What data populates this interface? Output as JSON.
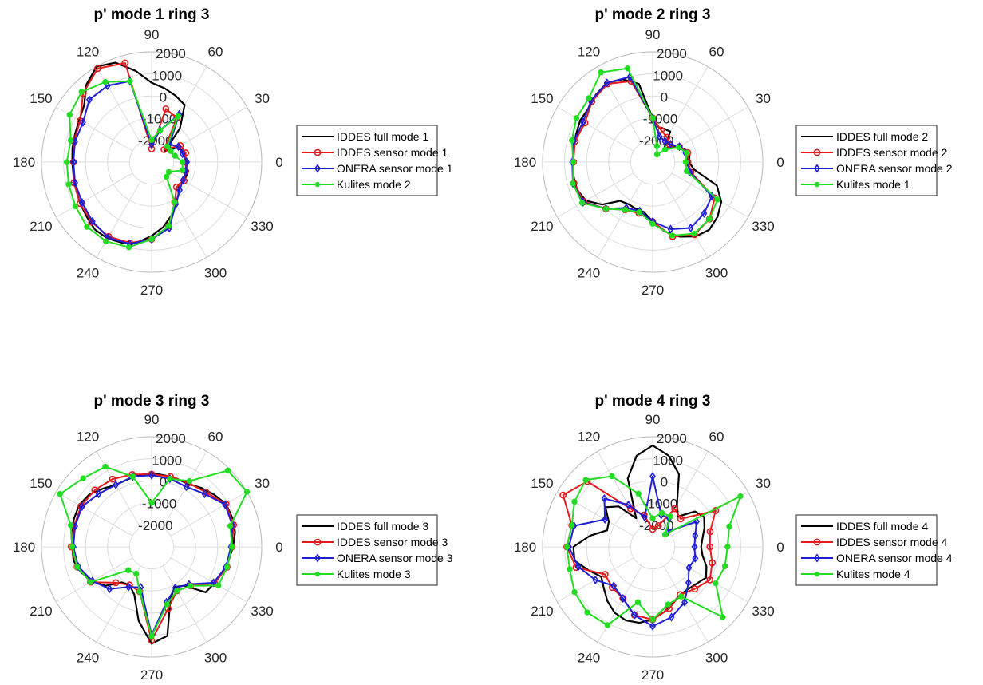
{
  "chart_data": [
    {
      "type": "polar",
      "title": "p' mode 1 ring 3",
      "theta_ticks": [
        0,
        30,
        60,
        90,
        120,
        150,
        180,
        210,
        240,
        270,
        300,
        330
      ],
      "r_ticks": [
        -2000,
        -1000,
        0,
        1000,
        2000
      ],
      "rlim": [
        -3000,
        2000
      ],
      "legend": "right",
      "series": [
        {
          "name": "IDDES full mode 1",
          "color": "#000000",
          "marker": "none",
          "theta": [
            0,
            10,
            20,
            30,
            40,
            50,
            60,
            70,
            80,
            90,
            100,
            110,
            120,
            130,
            140,
            150,
            160,
            170,
            180,
            190,
            200,
            210,
            220,
            230,
            240,
            250,
            260,
            270,
            280,
            290,
            300,
            310,
            320,
            330,
            340,
            350
          ],
          "r": [
            -1400,
            -1450,
            -1500,
            -1700,
            -2200,
            -1000,
            0,
            200,
            400,
            600,
            1200,
            1800,
            2000,
            1600,
            1000,
            800,
            700,
            650,
            600,
            600,
            650,
            750,
            850,
            1000,
            1000,
            900,
            700,
            350,
            0,
            -400,
            -800,
            -1100,
            -1400,
            -1300,
            -1300,
            -1400
          ]
        },
        {
          "name": "IDDES sensor mode 1",
          "color": "#e41a1c",
          "marker": "circle",
          "theta": [
            0,
            15,
            30,
            45,
            60,
            75,
            90,
            105,
            120,
            135,
            150,
            165,
            180,
            195,
            210,
            225,
            240,
            255,
            270,
            285,
            300,
            315,
            330,
            345
          ],
          "r": [
            -1450,
            -1400,
            -1500,
            -2200,
            -700,
            -500,
            -2400,
            1650,
            1900,
            1400,
            750,
            650,
            550,
            650,
            750,
            850,
            900,
            800,
            500,
            0,
            -900,
            -1400,
            -1300,
            -1400
          ]
        },
        {
          "name": "ONERA sensor mode 1",
          "color": "#1f1fd6",
          "marker": "diamond",
          "theta": [
            0,
            15,
            30,
            45,
            60,
            75,
            90,
            105,
            120,
            135,
            150,
            165,
            180,
            195,
            210,
            225,
            240,
            255,
            270,
            285,
            300,
            315,
            330,
            345
          ],
          "r": [
            -1400,
            -1550,
            -1600,
            -1850,
            -500,
            -1500,
            -2200,
            800,
            1000,
            1000,
            600,
            600,
            550,
            600,
            650,
            800,
            950,
            850,
            500,
            100,
            -800,
            -1200,
            -1350,
            -1400
          ]
        },
        {
          "name": "Kulites mode 2",
          "color": "#22dd22",
          "marker": "dot",
          "theta": [
            0,
            15,
            30,
            45,
            60,
            75,
            90,
            105,
            120,
            135,
            150,
            165,
            180,
            195,
            210,
            225,
            240,
            255,
            270,
            285,
            300,
            315,
            330,
            345
          ],
          "r": [
            -1600,
            -1900,
            -2000,
            -2000,
            -600,
            -1500,
            -2000,
            800,
            1200,
            1500,
            1300,
            800,
            850,
            900,
            1000,
            1150,
            1150,
            1000,
            500,
            0,
            -900,
            -2050,
            -2100,
            -1550
          ]
        }
      ]
    },
    {
      "type": "polar",
      "title": "p' mode 2 ring 3",
      "theta_ticks": [
        0,
        30,
        60,
        90,
        120,
        150,
        180,
        210,
        240,
        270,
        300,
        330
      ],
      "r_ticks": [
        -2000,
        -1000,
        0,
        1000,
        2000
      ],
      "rlim": [
        -3000,
        2000
      ],
      "legend": "right",
      "series": [
        {
          "name": "IDDES full mode 2",
          "color": "#000000",
          "marker": "none",
          "theta": [
            0,
            10,
            20,
            30,
            40,
            50,
            60,
            70,
            80,
            90,
            100,
            110,
            120,
            130,
            140,
            150,
            160,
            170,
            180,
            190,
            200,
            210,
            220,
            230,
            240,
            250,
            260,
            270,
            280,
            290,
            300,
            310,
            320,
            330,
            340,
            350
          ],
          "r": [
            -1350,
            -1300,
            -1400,
            -1600,
            -1900,
            -2200,
            -1400,
            -1400,
            -1400,
            -1000,
            600,
            1000,
            1150,
            1000,
            800,
            800,
            700,
            650,
            600,
            650,
            650,
            500,
            0,
            -700,
            -800,
            -750,
            -700,
            -300,
            200,
            600,
            900,
            1000,
            850,
            600,
            100,
            -1100
          ]
        },
        {
          "name": "IDDES sensor mode 2",
          "color": "#e41a1c",
          "marker": "circle",
          "theta": [
            0,
            15,
            30,
            45,
            60,
            75,
            90,
            105,
            120,
            135,
            150,
            165,
            180,
            195,
            210,
            225,
            240,
            255,
            270,
            285,
            300,
            315,
            330,
            345
          ],
          "r": [
            -1400,
            -1350,
            -1600,
            -1900,
            -1700,
            -1500,
            -1000,
            800,
            1100,
            900,
            550,
            650,
            600,
            700,
            600,
            0,
            -500,
            -600,
            -300,
            500,
            800,
            650,
            250,
            -1200
          ]
        },
        {
          "name": "ONERA sensor mode 2",
          "color": "#1f1fd6",
          "marker": "diamond",
          "theta": [
            0,
            15,
            30,
            45,
            60,
            75,
            90,
            105,
            120,
            135,
            150,
            165,
            180,
            195,
            210,
            225,
            240,
            255,
            270,
            285,
            300,
            315,
            330,
            345
          ],
          "r": [
            -1450,
            -1450,
            -1600,
            -1850,
            -1900,
            -1800,
            -1000,
            1000,
            1150,
            950,
            650,
            700,
            650,
            750,
            650,
            0,
            -600,
            -700,
            -300,
            150,
            450,
            300,
            100,
            -1250
          ]
        },
        {
          "name": "Kulites mode 1",
          "color": "#22dd22",
          "marker": "dot",
          "theta": [
            0,
            15,
            30,
            45,
            60,
            75,
            90,
            105,
            120,
            135,
            150,
            165,
            180,
            195,
            210,
            225,
            240,
            255,
            270,
            285,
            300,
            315,
            330,
            345
          ],
          "r": [
            -1500,
            -1400,
            -1650,
            -2200,
            -2600,
            -2250,
            -1000,
            1400,
            1700,
            1100,
            1000,
            800,
            600,
            750,
            700,
            0,
            -500,
            -650,
            -200,
            450,
            750,
            650,
            400,
            -1400
          ]
        }
      ]
    },
    {
      "type": "polar",
      "title": "p' mode 3 ring 3",
      "theta_ticks": [
        0,
        30,
        60,
        90,
        120,
        150,
        180,
        210,
        240,
        270,
        300,
        330
      ],
      "r_ticks": [
        -2000,
        -1000,
        0,
        1000,
        2000
      ],
      "rlim": [
        -3000,
        2000
      ],
      "legend": "right",
      "series": [
        {
          "name": "IDDES full mode 3",
          "color": "#000000",
          "marker": "none",
          "theta": [
            0,
            10,
            20,
            30,
            40,
            50,
            60,
            70,
            80,
            90,
            100,
            110,
            120,
            130,
            140,
            150,
            160,
            170,
            180,
            190,
            200,
            210,
            220,
            230,
            240,
            250,
            260,
            270,
            280,
            290,
            300,
            310,
            320,
            330,
            340,
            350
          ],
          "r": [
            700,
            850,
            900,
            900,
            700,
            500,
            300,
            300,
            300,
            350,
            300,
            250,
            250,
            450,
            700,
            800,
            750,
            700,
            600,
            600,
            400,
            100,
            -250,
            -900,
            -1000,
            -700,
            400,
            1400,
            1100,
            -500,
            -900,
            -700,
            200,
            300,
            400,
            550
          ]
        },
        {
          "name": "IDDES sensor mode 3",
          "color": "#e41a1c",
          "marker": "circle",
          "theta": [
            0,
            15,
            30,
            45,
            60,
            75,
            90,
            105,
            120,
            135,
            150,
            165,
            180,
            195,
            210,
            225,
            240,
            255,
            270,
            285,
            300,
            315,
            330,
            345
          ],
          "r": [
            650,
            850,
            900,
            500,
            350,
            300,
            300,
            400,
            550,
            650,
            700,
            650,
            650,
            500,
            200,
            -700,
            -1000,
            -900,
            1250,
            -100,
            -700,
            -500,
            300,
            550
          ]
        },
        {
          "name": "ONERA sensor mode 3",
          "color": "#1f1fd6",
          "marker": "diamond",
          "theta": [
            0,
            15,
            30,
            45,
            60,
            75,
            90,
            105,
            120,
            135,
            150,
            165,
            180,
            195,
            210,
            225,
            240,
            255,
            270,
            285,
            300,
            315,
            330,
            345
          ],
          "r": [
            600,
            800,
            850,
            400,
            150,
            200,
            250,
            300,
            250,
            400,
            650,
            600,
            550,
            450,
            100,
            -300,
            -900,
            -1100,
            1000,
            -400,
            -850,
            -600,
            250,
            500
          ]
        },
        {
          "name": "Kulites mode 3",
          "color": "#22dd22",
          "marker": "dot",
          "theta": [
            0,
            15,
            30,
            45,
            60,
            75,
            90,
            105,
            120,
            135,
            150,
            165,
            180,
            195,
            210,
            225,
            240,
            255,
            270,
            285,
            300,
            315,
            330,
            345
          ],
          "r": [
            650,
            700,
            2000,
            1900,
            450,
            200,
            -1000,
            300,
            1200,
            1400,
            1800,
            800,
            600,
            500,
            200,
            -1500,
            -1600,
            -900,
            1050,
            -300,
            -700,
            -500,
            500,
            550
          ]
        }
      ]
    },
    {
      "type": "polar",
      "title": "p' mode 4 ring 3",
      "theta_ticks": [
        0,
        30,
        60,
        90,
        120,
        150,
        180,
        210,
        240,
        270,
        300,
        330
      ],
      "r_ticks": [
        -2000,
        -1000,
        0,
        1000,
        2000
      ],
      "rlim": [
        -3000,
        2000
      ],
      "legend": "right",
      "series": [
        {
          "name": "IDDES full mode 4",
          "color": "#000000",
          "marker": "none",
          "theta": [
            0,
            10,
            20,
            30,
            40,
            50,
            60,
            70,
            80,
            90,
            100,
            110,
            120,
            130,
            140,
            150,
            160,
            170,
            180,
            190,
            200,
            210,
            220,
            230,
            240,
            250,
            260,
            270,
            280,
            290,
            300,
            310,
            320,
            330,
            340,
            350
          ],
          "r": [
            -800,
            -700,
            -500,
            -300,
            -500,
            -1200,
            -800,
            500,
            1200,
            1600,
            1200,
            300,
            -1500,
            -600,
            -200,
            -700,
            -800,
            -100,
            600,
            600,
            100,
            -300,
            -100,
            200,
            450,
            550,
            500,
            300,
            0,
            -300,
            -500,
            -500,
            -400,
            -200,
            -400,
            -700
          ]
        },
        {
          "name": "IDDES sensor mode 4",
          "color": "#e41a1c",
          "marker": "circle",
          "theta": [
            0,
            15,
            30,
            45,
            60,
            75,
            90,
            105,
            120,
            135,
            150,
            165,
            180,
            195,
            210,
            225,
            240,
            255,
            270,
            285,
            300,
            315,
            330,
            345
          ],
          "r": [
            -400,
            -300,
            300,
            -1200,
            -1000,
            -2000,
            -2200,
            -1500,
            -1000,
            1200,
            1700,
            800,
            900,
            600,
            -500,
            -400,
            -300,
            200,
            300,
            -100,
            -500,
            -300,
            0,
            -200
          ]
        },
        {
          "name": "ONERA sensor mode 4",
          "color": "#1f1fd6",
          "marker": "diamond",
          "theta": [
            0,
            15,
            30,
            45,
            60,
            75,
            90,
            105,
            120,
            135,
            150,
            165,
            180,
            195,
            210,
            225,
            240,
            255,
            270,
            285,
            300,
            315,
            330,
            345
          ],
          "r": [
            -1100,
            -1000,
            -700,
            -2000,
            -1500,
            -1500,
            200,
            -1600,
            -800,
            100,
            -500,
            700,
            800,
            500,
            0,
            -500,
            -300,
            200,
            600,
            300,
            -100,
            -700,
            -1100,
            -1000
          ]
        },
        {
          "name": "Kulites mode 4",
          "color": "#22dd22",
          "marker": "dot",
          "theta": [
            0,
            15,
            30,
            45,
            60,
            75,
            90,
            105,
            120,
            135,
            150,
            165,
            180,
            195,
            210,
            225,
            240,
            255,
            270,
            285,
            300,
            315,
            330,
            345
          ],
          "r": [
            400,
            600,
            1600,
            -2200,
            -1400,
            -1400,
            -1700,
            -500,
            700,
            1300,
            1100,
            800,
            900,
            900,
            1100,
            1200,
            1100,
            -400,
            300,
            -300,
            -400,
            1500,
            300,
            400
          ]
        }
      ]
    }
  ]
}
